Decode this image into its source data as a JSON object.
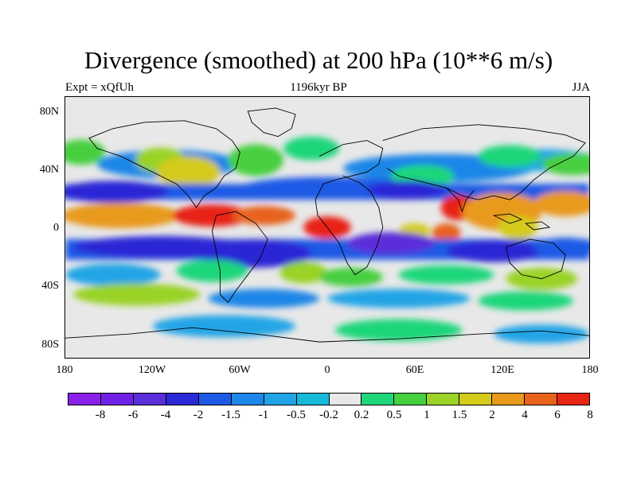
{
  "title": "Divergence (smoothed) at 200 hPa (10**6 m/s)",
  "subtitle_left": "Expt = xQfUh",
  "subtitle_center": "1196kyr BP",
  "subtitle_right": "JJA",
  "lat_labels": [
    "80N",
    "40N",
    "0",
    "40S",
    "80S"
  ],
  "lon_labels": [
    "180",
    "120W",
    "60W",
    "0",
    "60E",
    "120E",
    "180"
  ],
  "colorbar": {
    "labels": [
      "-8",
      "-6",
      "-4",
      "-2",
      "-1.5",
      "-1",
      "-0.5",
      "-0.2",
      "0.2",
      "0.5",
      "1",
      "1.5",
      "2",
      "4",
      "6",
      "8"
    ],
    "colors": [
      "#8a1fe8",
      "#6f22e6",
      "#5a2ed8",
      "#2b28d6",
      "#1f5ae6",
      "#1d86e8",
      "#21a4e6",
      "#17b9d9",
      "#e8e8e8",
      "#1ed67a",
      "#46cf3f",
      "#9ad326",
      "#d4cb1a",
      "#e89a1a",
      "#e8621a",
      "#e82414"
    ]
  }
}
